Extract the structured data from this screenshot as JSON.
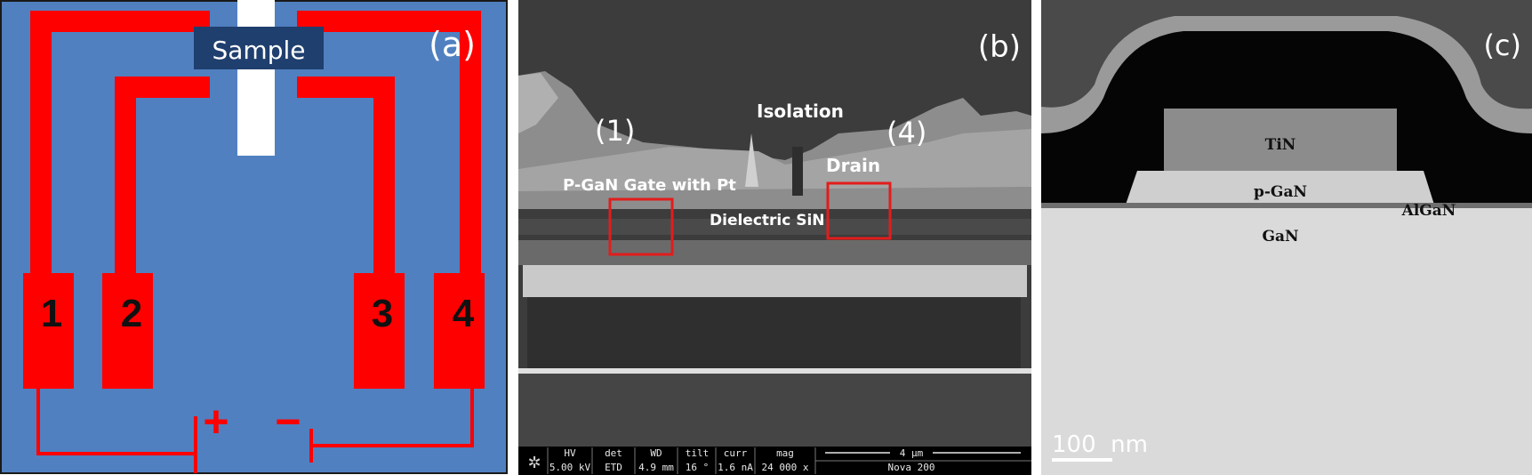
{
  "panel_a": {
    "label": "(a)",
    "sample_label": "Sample",
    "contacts": [
      "1",
      "2",
      "3",
      "4"
    ],
    "plus": "+",
    "minus": "−",
    "colors": {
      "background": "#5080c0",
      "trace": "#ff0000",
      "sample_box": "#1f3f6e"
    }
  },
  "panel_b": {
    "label": "(b)",
    "marker_1": "(1)",
    "marker_4": "(4)",
    "isolation": "Isolation",
    "drain": "Drain",
    "gate": "P-GaN Gate with Pt",
    "dielectric": "Dielectric  SiN",
    "info_bar": {
      "headers": [
        "HV",
        "det",
        "WD",
        "tilt",
        "curr",
        "mag"
      ],
      "values": [
        "5.00 kV",
        "ETD",
        "4.9 mm",
        "16 °",
        "1.6 nA",
        "24 000 x"
      ],
      "scale": "4 μm",
      "instrument": "Nova 200"
    }
  },
  "panel_c": {
    "label": "(c)",
    "tin": "TiN",
    "pgan": "p-GaN",
    "algan": "AlGaN",
    "gan": "GaN",
    "scale": "100  nm"
  }
}
